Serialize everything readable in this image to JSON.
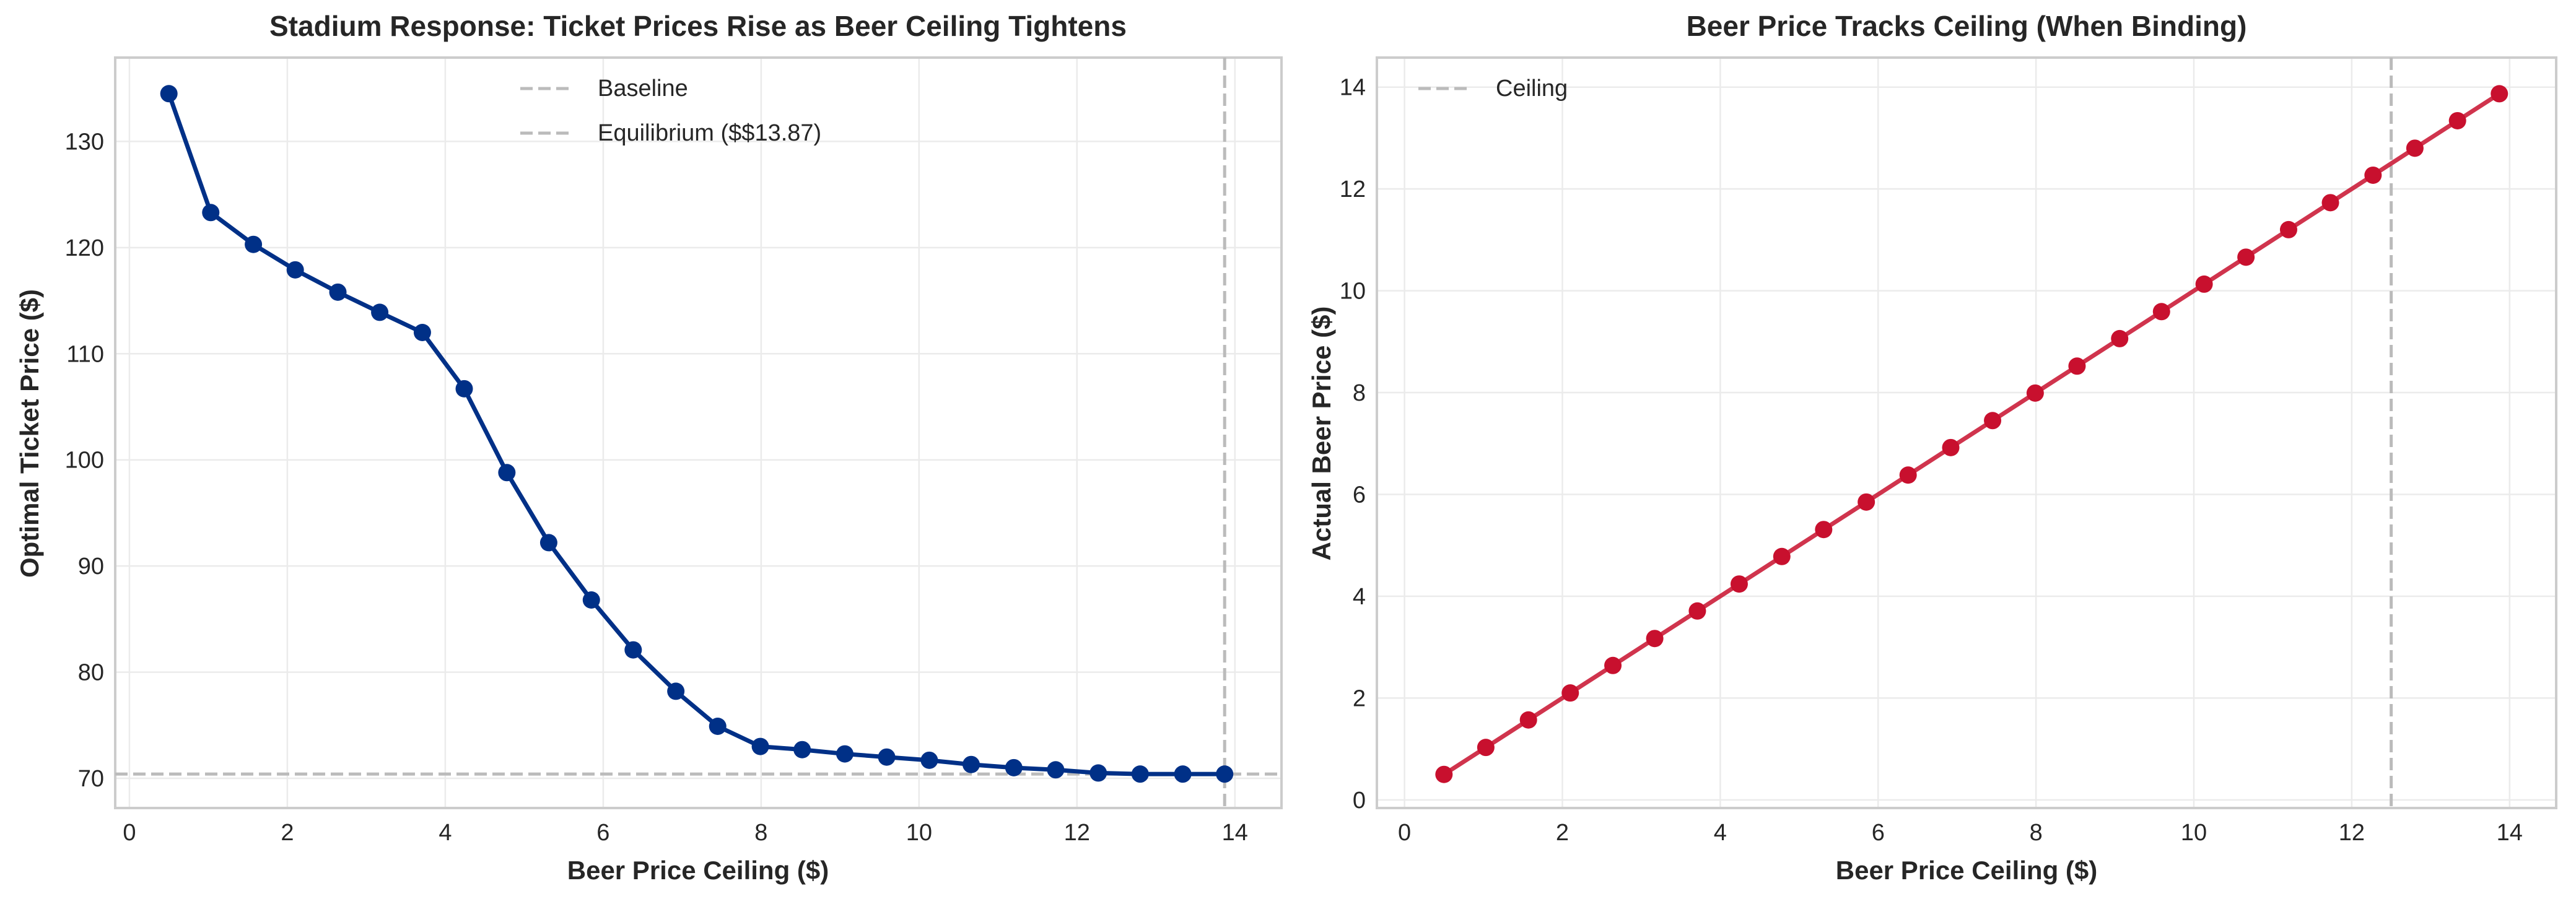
{
  "chart_data": [
    {
      "type": "line",
      "title": "Stadium Response: Ticket Prices Rise as Beer Ceiling Tightens",
      "xlabel": "Beer Price Ceiling ($)",
      "ylabel": "Optimal Ticket Price ($)",
      "xlim": [
        -0.18,
        14.59
      ],
      "ylim": [
        67.2,
        137.9
      ],
      "xticks": [
        0,
        2,
        4,
        6,
        8,
        10,
        12,
        14
      ],
      "yticks": [
        70,
        80,
        90,
        100,
        110,
        120,
        130
      ],
      "grid": true,
      "legend_position": "top-center",
      "line_color": "#003087",
      "x": [
        0.5,
        1.03,
        1.57,
        2.1,
        2.64,
        3.17,
        3.71,
        4.24,
        4.78,
        5.31,
        5.85,
        6.38,
        6.92,
        7.45,
        7.99,
        8.52,
        9.06,
        9.59,
        10.13,
        10.66,
        11.2,
        11.73,
        12.27,
        12.8,
        13.34,
        13.87
      ],
      "y": [
        134.5,
        123.3,
        120.3,
        117.9,
        115.8,
        113.9,
        112.0,
        106.7,
        98.8,
        92.2,
        86.8,
        82.1,
        78.2,
        74.9,
        73.0,
        72.7,
        72.3,
        72.0,
        71.7,
        71.3,
        71.0,
        70.8,
        70.5,
        70.4,
        70.4,
        70.4
      ],
      "reference_lines": [
        {
          "name": "Baseline",
          "orientation": "horizontal",
          "value": 70.4,
          "color": "#bbbbbb"
        },
        {
          "name": "Equilibrium ($$13.87)",
          "orientation": "vertical",
          "value": 13.87,
          "color": "#bbbbbb"
        }
      ]
    },
    {
      "type": "line",
      "title": "Beer Price Tracks Ceiling (When Binding)",
      "xlabel": "Beer Price Ceiling ($)",
      "ylabel": "Actual Beer Price ($)",
      "xlim": [
        -0.35,
        14.59
      ],
      "ylim": [
        -0.16,
        14.58
      ],
      "xticks": [
        0,
        2,
        4,
        6,
        8,
        10,
        12,
        14
      ],
      "yticks": [
        0,
        2,
        4,
        6,
        8,
        10,
        12,
        14
      ],
      "grid": true,
      "legend_position": "top-left",
      "line_color": "#C8102E",
      "x": [
        0.5,
        1.03,
        1.57,
        2.1,
        2.64,
        3.17,
        3.71,
        4.24,
        4.78,
        5.31,
        5.85,
        6.38,
        6.92,
        7.45,
        7.99,
        8.52,
        9.06,
        9.59,
        10.13,
        10.66,
        11.2,
        11.73,
        12.27,
        12.8,
        13.34,
        13.87
      ],
      "y": [
        0.5,
        1.03,
        1.57,
        2.1,
        2.64,
        3.17,
        3.71,
        4.24,
        4.78,
        5.31,
        5.85,
        6.38,
        6.92,
        7.45,
        7.99,
        8.52,
        9.06,
        9.59,
        10.13,
        10.66,
        11.2,
        11.73,
        12.27,
        12.8,
        13.34,
        13.87
      ],
      "reference_lines": [
        {
          "name": "Ceiling",
          "orientation": "vertical",
          "value": 12.5,
          "color": "#bbbbbb"
        }
      ]
    }
  ]
}
